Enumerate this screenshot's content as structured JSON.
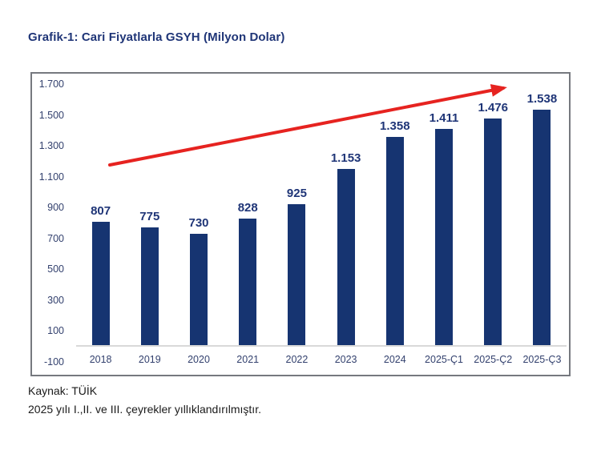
{
  "title": "Grafik-1: Cari Fiyatlarla GSYH (Milyon Dolar)",
  "footer": {
    "source": "Kaynak: TÜİK",
    "note": "2025 yılı I.,II. ve III. çeyrekler yıllıklandırılmıştır."
  },
  "colors": {
    "bar": "#163471",
    "value_label": "#1f3577",
    "tick": "#33416e",
    "title": "#1f3577",
    "arrow": "#e62320",
    "panel_border": "#76797f",
    "baseline": "#d9d9d9",
    "footer_text": "#1a1a1a"
  },
  "chart_data": {
    "type": "bar",
    "title": "Grafik-1: Cari Fiyatlarla GSYH (Milyon Dolar)",
    "xlabel": "",
    "ylabel": "",
    "categories": [
      "2018",
      "2019",
      "2020",
      "2021",
      "2022",
      "2023",
      "2024",
      "2025-Ç1",
      "2025-Ç2",
      "2025-Ç3"
    ],
    "values": [
      807,
      775,
      730,
      828,
      925,
      1153,
      1358,
      1411,
      1476,
      1538
    ],
    "value_labels": [
      "807",
      "775",
      "730",
      "828",
      "925",
      "1.153",
      "1.358",
      "1.411",
      "1.476",
      "1.538"
    ],
    "ylim": [
      -100,
      1700
    ],
    "y_ticks": [
      1700,
      1500,
      1300,
      1100,
      900,
      700,
      500,
      300,
      100,
      -100
    ],
    "y_tick_labels": [
      "1.700",
      "1.500",
      "1.300",
      "1.100",
      "900",
      "700",
      "500",
      "300",
      "100",
      "-100"
    ],
    "grid": false,
    "legend": false,
    "annotations": [
      {
        "type": "arrow",
        "color": "#e62320",
        "description": "red upward trend arrow across bars from 2018 level toward 2025-Ç3 peak"
      }
    ]
  }
}
